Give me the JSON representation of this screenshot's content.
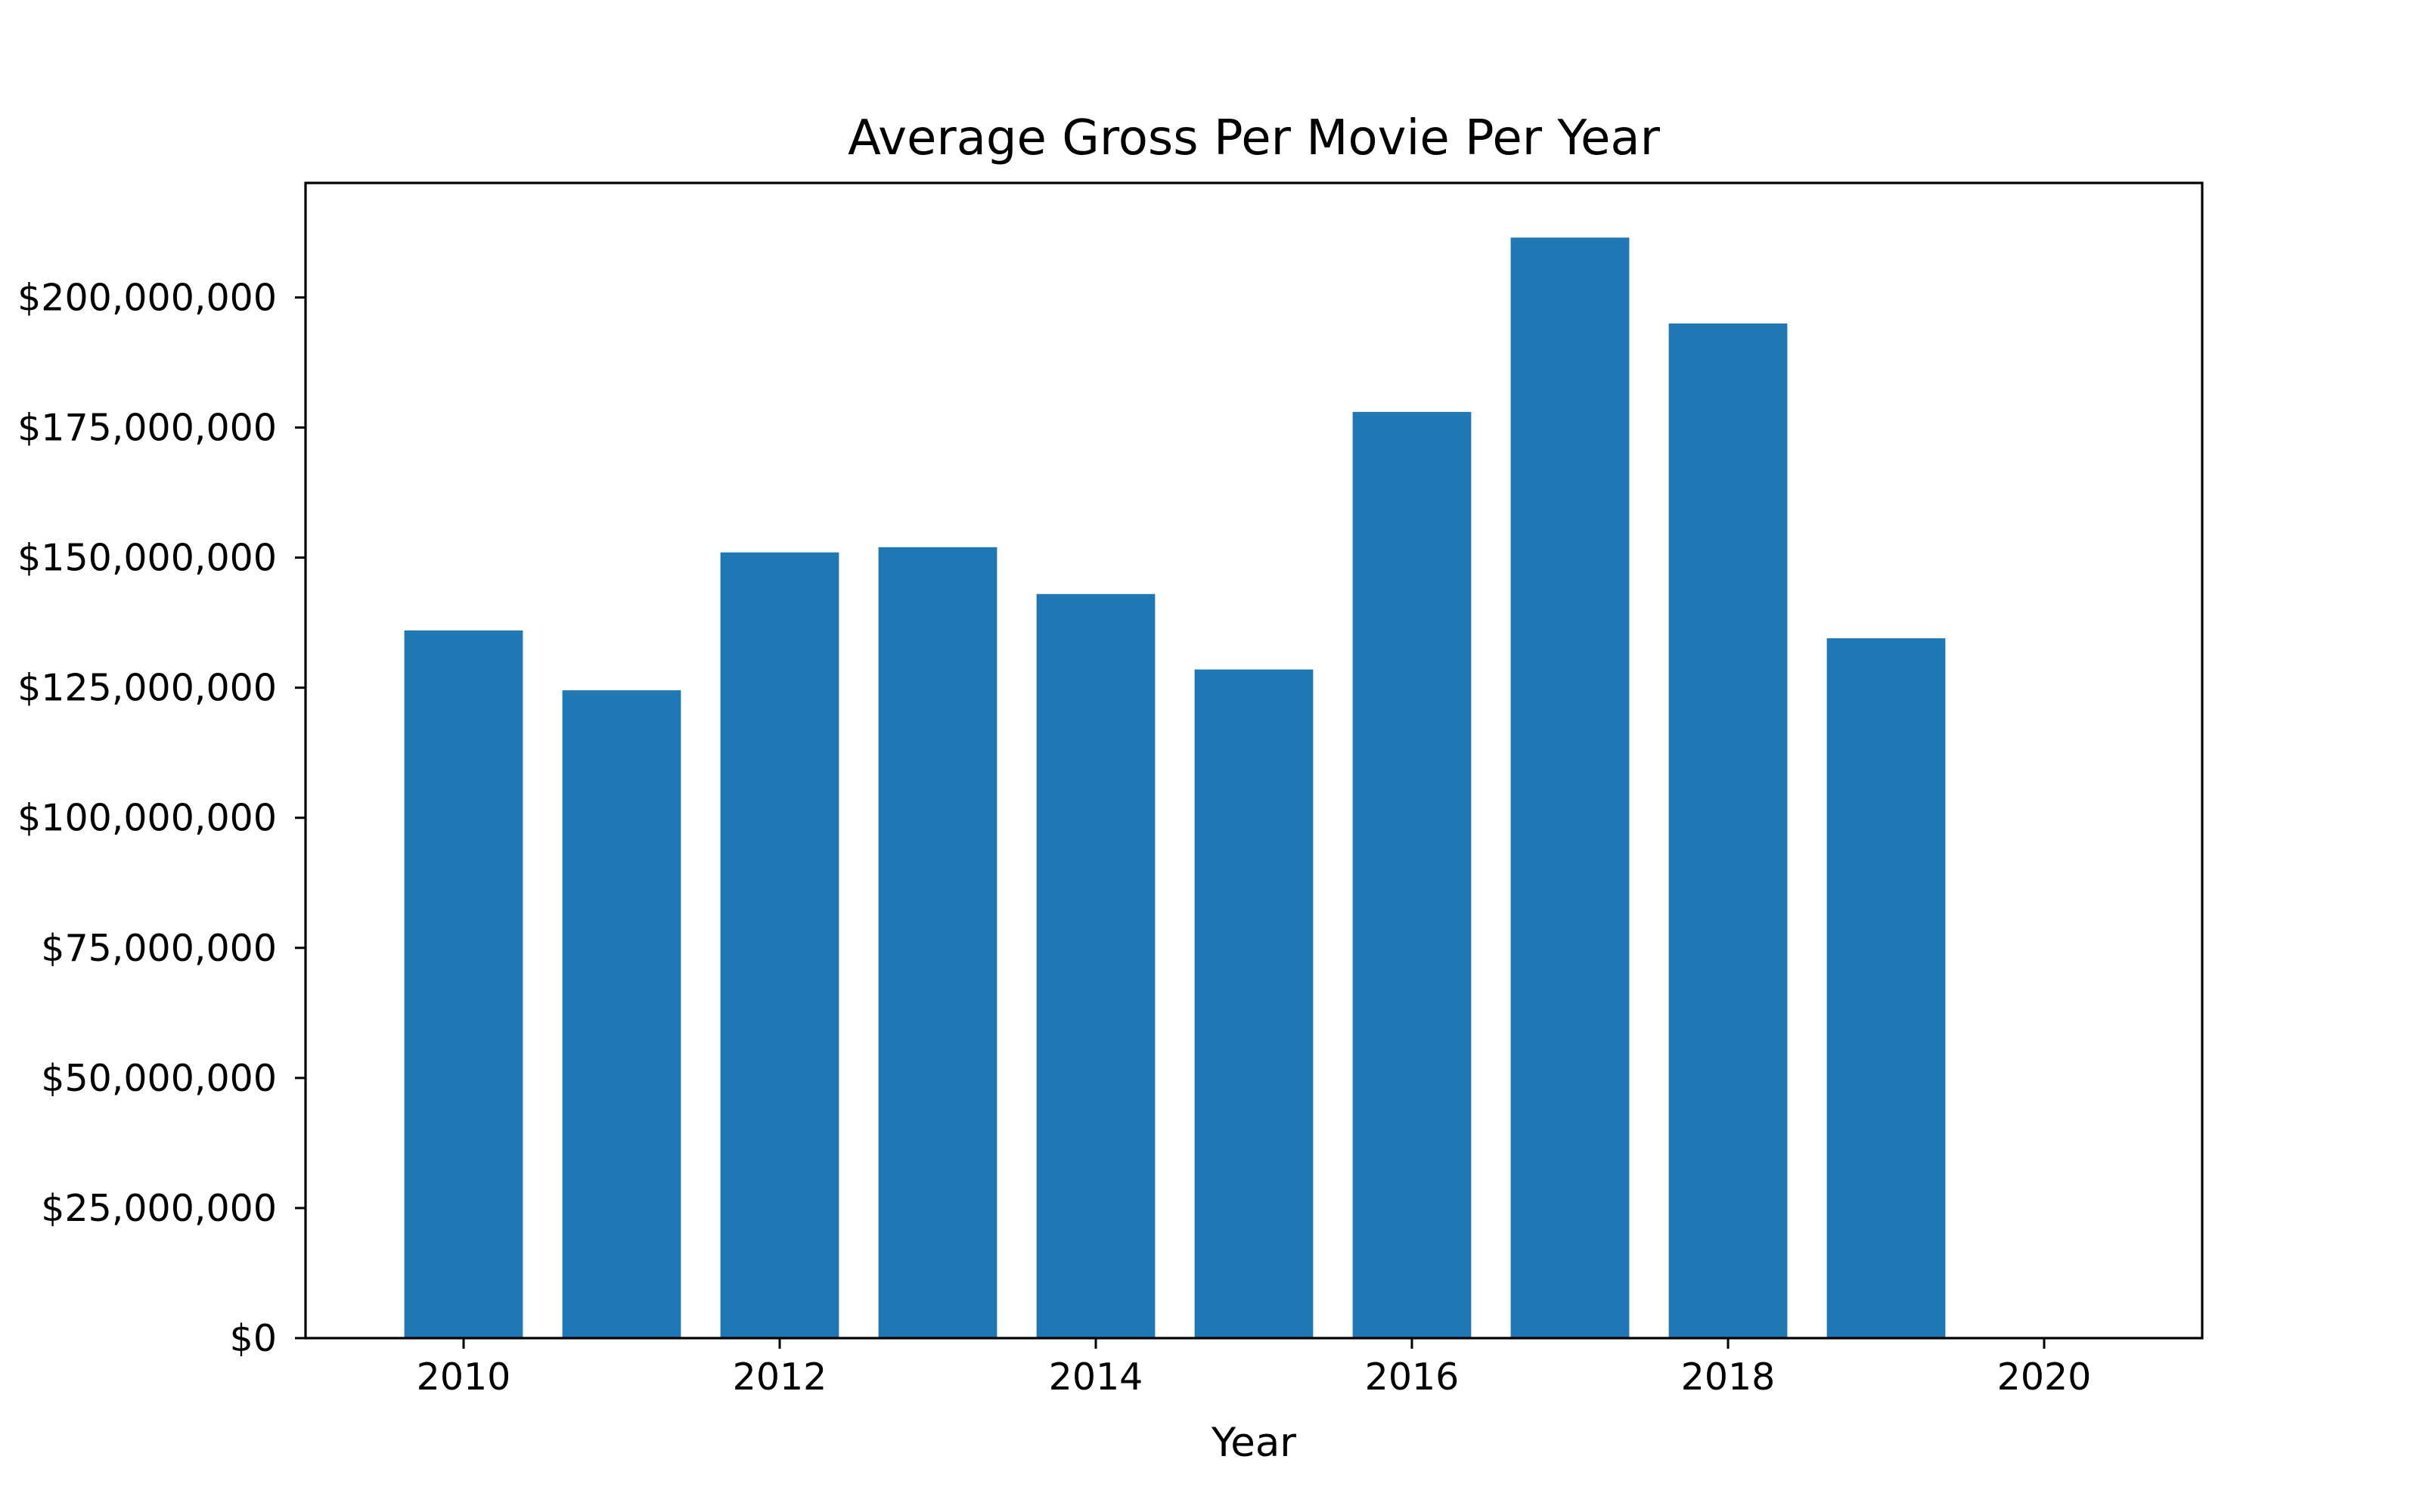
{
  "chart_data": {
    "type": "bar",
    "title": "Average Gross Per Movie Per Year",
    "xlabel": "Year",
    "ylabel": "",
    "categories": [
      2010,
      2011,
      2012,
      2013,
      2014,
      2015,
      2016,
      2017,
      2018,
      2019
    ],
    "values": [
      136000000,
      124500000,
      151000000,
      152000000,
      143000000,
      128500000,
      178000000,
      211500000,
      195000000,
      134500000
    ],
    "xlim": [
      2009,
      2021
    ],
    "ylim": [
      0,
      222000000
    ],
    "x_ticks": [
      2010,
      2012,
      2014,
      2016,
      2018,
      2020
    ],
    "x_tick_labels": [
      "2010",
      "2012",
      "2014",
      "2016",
      "2018",
      "2020"
    ],
    "y_ticks": [
      0,
      25000000,
      50000000,
      75000000,
      100000000,
      125000000,
      150000000,
      175000000,
      200000000
    ],
    "y_tick_labels": [
      "$0",
      "$25,000,000",
      "$50,000,000",
      "$75,000,000",
      "$100,000,000",
      "$125,000,000",
      "$150,000,000",
      "$175,000,000",
      "$200,000,000"
    ],
    "bar_color": "#1f77b4",
    "grid": false,
    "legend": "none"
  }
}
